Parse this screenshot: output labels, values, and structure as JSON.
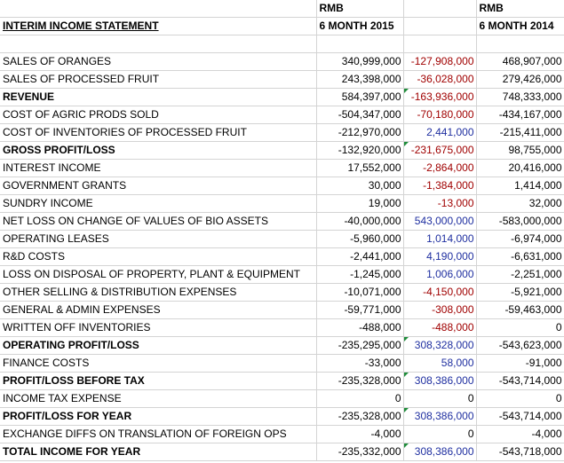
{
  "header": {
    "row1": {
      "col2": "RMB",
      "col4": "RMB"
    },
    "row2": {
      "col1": "INTERIM INCOME STATEMENT",
      "col2": "6 MONTH 2015",
      "col4": "6 MONTH 2014"
    }
  },
  "rows": [
    {
      "label": "SALES OF ORANGES",
      "v2015": "340,999,000",
      "diff": "-127,908,000",
      "v2014": "468,907,000",
      "bold": false,
      "diff_color": "red",
      "flag": false
    },
    {
      "label": "SALES OF PROCESSED FRUIT",
      "v2015": "243,398,000",
      "diff": "-36,028,000",
      "v2014": "279,426,000",
      "bold": false,
      "diff_color": "red",
      "flag": false
    },
    {
      "label": "REVENUE",
      "v2015": "584,397,000",
      "diff": "-163,936,000",
      "v2014": "748,333,000",
      "bold": true,
      "diff_color": "red",
      "flag": true
    },
    {
      "label": "COST OF AGRIC PRODS SOLD",
      "v2015": "-504,347,000",
      "diff": "-70,180,000",
      "v2014": "-434,167,000",
      "bold": false,
      "diff_color": "red",
      "flag": false
    },
    {
      "label": "COST OF INVENTORIES OF PROCESSED FRUIT",
      "v2015": "-212,970,000",
      "diff": "2,441,000",
      "v2014": "-215,411,000",
      "bold": false,
      "diff_color": "blue",
      "flag": false
    },
    {
      "label": "GROSS PROFIT/LOSS",
      "v2015": "-132,920,000",
      "diff": "-231,675,000",
      "v2014": "98,755,000",
      "bold": true,
      "diff_color": "red",
      "flag": true
    },
    {
      "label": "INTEREST INCOME",
      "v2015": "17,552,000",
      "diff": "-2,864,000",
      "v2014": "20,416,000",
      "bold": false,
      "diff_color": "red",
      "flag": false
    },
    {
      "label": "GOVERNMENT GRANTS",
      "v2015": "30,000",
      "diff": "-1,384,000",
      "v2014": "1,414,000",
      "bold": false,
      "diff_color": "red",
      "flag": false
    },
    {
      "label": "SUNDRY INCOME",
      "v2015": "19,000",
      "diff": "-13,000",
      "v2014": "32,000",
      "bold": false,
      "diff_color": "red",
      "flag": false
    },
    {
      "label": "NET LOSS ON CHANGE OF VALUES OF BIO ASSETS",
      "v2015": "-40,000,000",
      "diff": "543,000,000",
      "v2014": "-583,000,000",
      "bold": false,
      "diff_color": "blue",
      "flag": false
    },
    {
      "label": "OPERATING LEASES",
      "v2015": "-5,960,000",
      "diff": "1,014,000",
      "v2014": "-6,974,000",
      "bold": false,
      "diff_color": "blue",
      "flag": false
    },
    {
      "label": "R&D COSTS",
      "v2015": "-2,441,000",
      "diff": "4,190,000",
      "v2014": "-6,631,000",
      "bold": false,
      "diff_color": "blue",
      "flag": false
    },
    {
      "label": "LOSS ON DISPOSAL OF PROPERTY, PLANT & EQUIPMENT",
      "v2015": "-1,245,000",
      "diff": "1,006,000",
      "v2014": "-2,251,000",
      "bold": false,
      "diff_color": "blue",
      "flag": false
    },
    {
      "label": "OTHER SELLING & DISTRIBUTION EXPENSES",
      "v2015": "-10,071,000",
      "diff": "-4,150,000",
      "v2014": "-5,921,000",
      "bold": false,
      "diff_color": "red",
      "flag": false
    },
    {
      "label": "GENERAL & ADMIN EXPENSES",
      "v2015": "-59,771,000",
      "diff": "-308,000",
      "v2014": "-59,463,000",
      "bold": false,
      "diff_color": "red",
      "flag": false
    },
    {
      "label": "WRITTEN OFF INVENTORIES",
      "v2015": "-488,000",
      "diff": "-488,000",
      "v2014": "0",
      "bold": false,
      "diff_color": "red",
      "flag": false
    },
    {
      "label": "OPERATING PROFIT/LOSS",
      "v2015": "-235,295,000",
      "diff": "308,328,000",
      "v2014": "-543,623,000",
      "bold": true,
      "diff_color": "blue",
      "flag": true
    },
    {
      "label": "FINANCE COSTS",
      "v2015": "-33,000",
      "diff": "58,000",
      "v2014": "-91,000",
      "bold": false,
      "diff_color": "blue",
      "flag": false
    },
    {
      "label": "PROFIT/LOSS BEFORE TAX",
      "v2015": "-235,328,000",
      "diff": "308,386,000",
      "v2014": "-543,714,000",
      "bold": true,
      "diff_color": "blue",
      "flag": true
    },
    {
      "label": "INCOME TAX EXPENSE",
      "v2015": "0",
      "diff": "0",
      "v2014": "0",
      "bold": false,
      "diff_color": "black",
      "flag": false
    },
    {
      "label": "PROFIT/LOSS FOR YEAR",
      "v2015": "-235,328,000",
      "diff": "308,386,000",
      "v2014": "-543,714,000",
      "bold": true,
      "diff_color": "blue",
      "flag": true
    },
    {
      "label": "EXCHANGE DIFFS ON TRANSLATION OF FOREIGN OPS",
      "v2015": "-4,000",
      "diff": "0",
      "v2014": "-4,000",
      "bold": false,
      "diff_color": "black",
      "flag": false
    },
    {
      "label": "TOTAL INCOME FOR YEAR",
      "v2015": "-235,332,000",
      "diff": "308,386,000",
      "v2014": "-543,718,000",
      "bold": true,
      "diff_color": "blue",
      "flag": true
    }
  ],
  "colors": {
    "negative_diff": "#a00000",
    "positive_diff": "#1f2fa0",
    "grid": "#d4d4d4",
    "flag": "#1e8c3a"
  }
}
